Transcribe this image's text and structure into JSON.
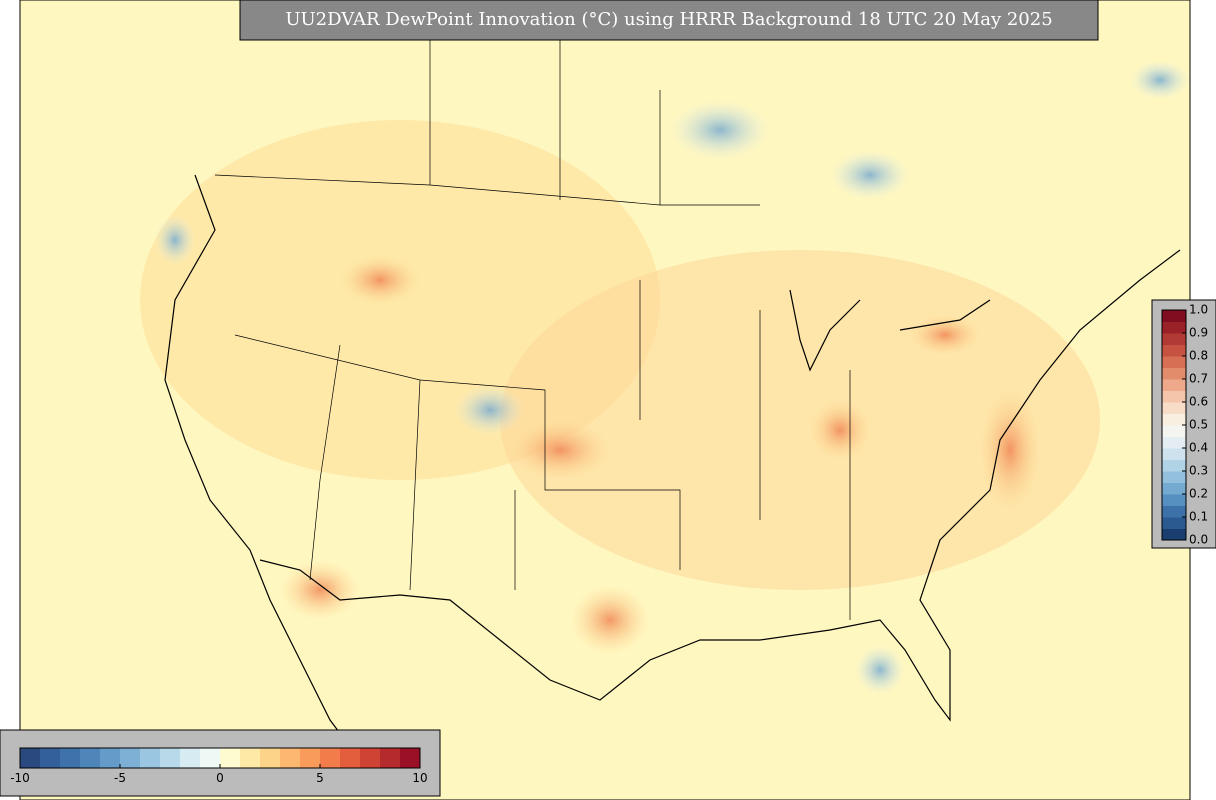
{
  "title": "UU2DVAR DewPoint Innovation (°C) using HRRR Background 18 UTC 20 May 2025",
  "colorbars": [
    {
      "orientation": "horizontal",
      "lim": [
        -10,
        10
      ],
      "ticks": [
        -10,
        -5,
        0,
        5,
        10
      ],
      "colors": [
        "#2a4a7f",
        "#33609a",
        "#3f72ab",
        "#4f86b9",
        "#649bc8",
        "#7eb0d6",
        "#9ac6e2",
        "#b8d9ea",
        "#d6ebf2",
        "#eef8f5",
        "#fffbd0",
        "#fee9a7",
        "#fdd38a",
        "#fcb870",
        "#f99b5b",
        "#f27d4b",
        "#e35e3d",
        "#cf4334",
        "#b52a2c",
        "#9a1027"
      ]
    },
    {
      "orientation": "vertical",
      "lim": [
        0,
        1
      ],
      "ticks": [
        {
          "value": 0,
          "label": "0.0"
        },
        0.1,
        0.2,
        0.3,
        0.4,
        0.5,
        0.6,
        0.7,
        0.8,
        0.9,
        {
          "value": 1,
          "label": "1.0"
        }
      ],
      "colors": [
        "#1a3e6f",
        "#2a5a90",
        "#3c72a8",
        "#5590c0",
        "#74a9d0",
        "#93c1dd",
        "#b1d3e6",
        "#cde2ed",
        "#e4eef2",
        "#f4f4f0",
        "#f8efe0",
        "#f7ddc8",
        "#f4c5aa",
        "#eea98b",
        "#e38c6c",
        "#d66f53",
        "#c65342",
        "#b23a34",
        "#9b2129",
        "#800d20"
      ]
    }
  ]
}
